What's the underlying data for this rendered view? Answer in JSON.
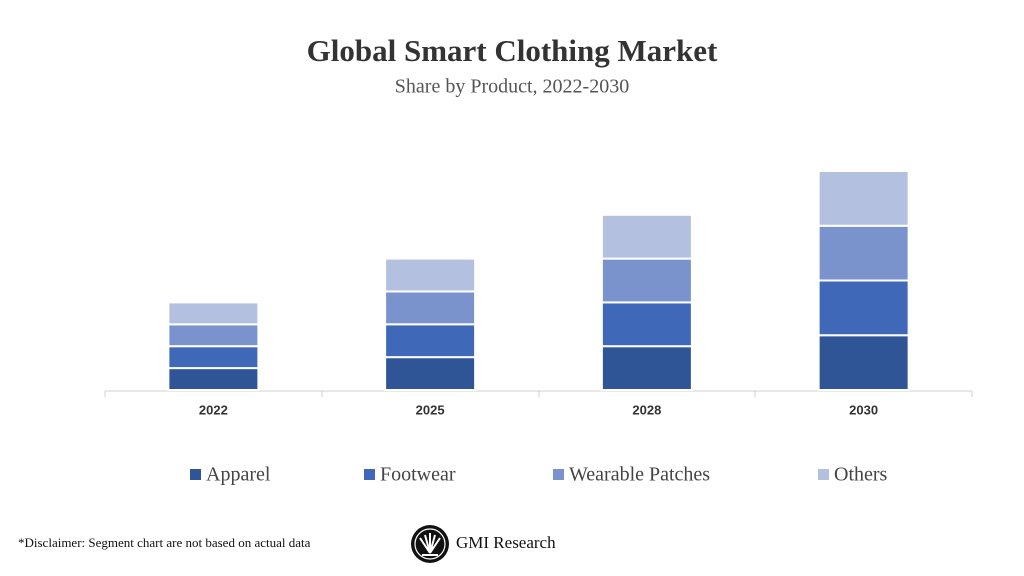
{
  "chart_data": {
    "type": "bar",
    "stacked": true,
    "title": "Global Smart Clothing Market",
    "subtitle": "Share by Product, 2022-2030",
    "categories": [
      "2022",
      "2025",
      "2028",
      "2030"
    ],
    "series": [
      {
        "name": "Apparel",
        "color": "#2f5597",
        "values": [
          2,
          3,
          4,
          5
        ]
      },
      {
        "name": "Footwear",
        "color": "#4068b8",
        "values": [
          2,
          3,
          4,
          5
        ]
      },
      {
        "name": "Wearable Patches",
        "color": "#7b93cc",
        "values": [
          2,
          3,
          4,
          5
        ]
      },
      {
        "name": "Others",
        "color": "#b4c0e0",
        "values": [
          2,
          3,
          4,
          5
        ]
      }
    ]
  },
  "footer": {
    "disclaimer": "*Disclaimer:  Segment chart are not based on actual data",
    "brand": "GMI Research"
  }
}
